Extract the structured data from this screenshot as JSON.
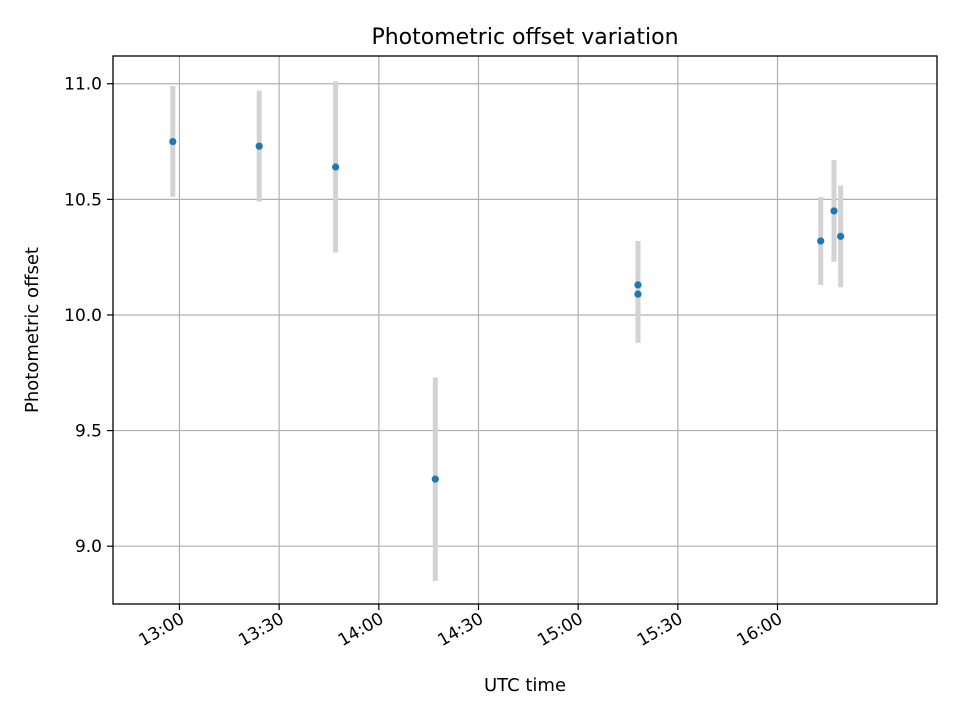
{
  "chart_data": {
    "type": "scatter",
    "title": "Photometric offset variation",
    "xlabel": "UTC time",
    "ylabel": "Photometric offset",
    "x_unit": "time (HH:MM)",
    "xlim": [
      "12:40",
      "16:48"
    ],
    "ylim": [
      8.75,
      11.12
    ],
    "grid": true,
    "x_ticks": [
      "13:00",
      "13:30",
      "14:00",
      "14:30",
      "15:00",
      "15:30",
      "16:00"
    ],
    "y_ticks": [
      9.0,
      9.5,
      10.0,
      10.5,
      11.0
    ],
    "y_tick_labels": [
      "9.0",
      "9.5",
      "10.0",
      "10.5",
      "11.0"
    ],
    "colors": {
      "marker": "#1f77b4",
      "errorbar": "#d3d3d3",
      "grid": "#b0b0b0"
    },
    "series": [
      {
        "points": [
          {
            "x": "12:58",
            "y": 10.75,
            "yerr": 0.24
          },
          {
            "x": "13:24",
            "y": 10.73,
            "yerr": 0.24
          },
          {
            "x": "13:47",
            "y": 10.64,
            "yerr": 0.37
          },
          {
            "x": "14:17",
            "y": 9.29,
            "yerr": 0.44
          },
          {
            "x": "15:18",
            "y": 10.13,
            "yerr": 0.19
          },
          {
            "x": "15:18",
            "y": 10.09,
            "yerr": 0.21
          },
          {
            "x": "16:13",
            "y": 10.32,
            "yerr": 0.19
          },
          {
            "x": "16:17",
            "y": 10.45,
            "yerr": 0.22
          },
          {
            "x": "16:19",
            "y": 10.34,
            "yerr": 0.22
          }
        ]
      }
    ]
  }
}
